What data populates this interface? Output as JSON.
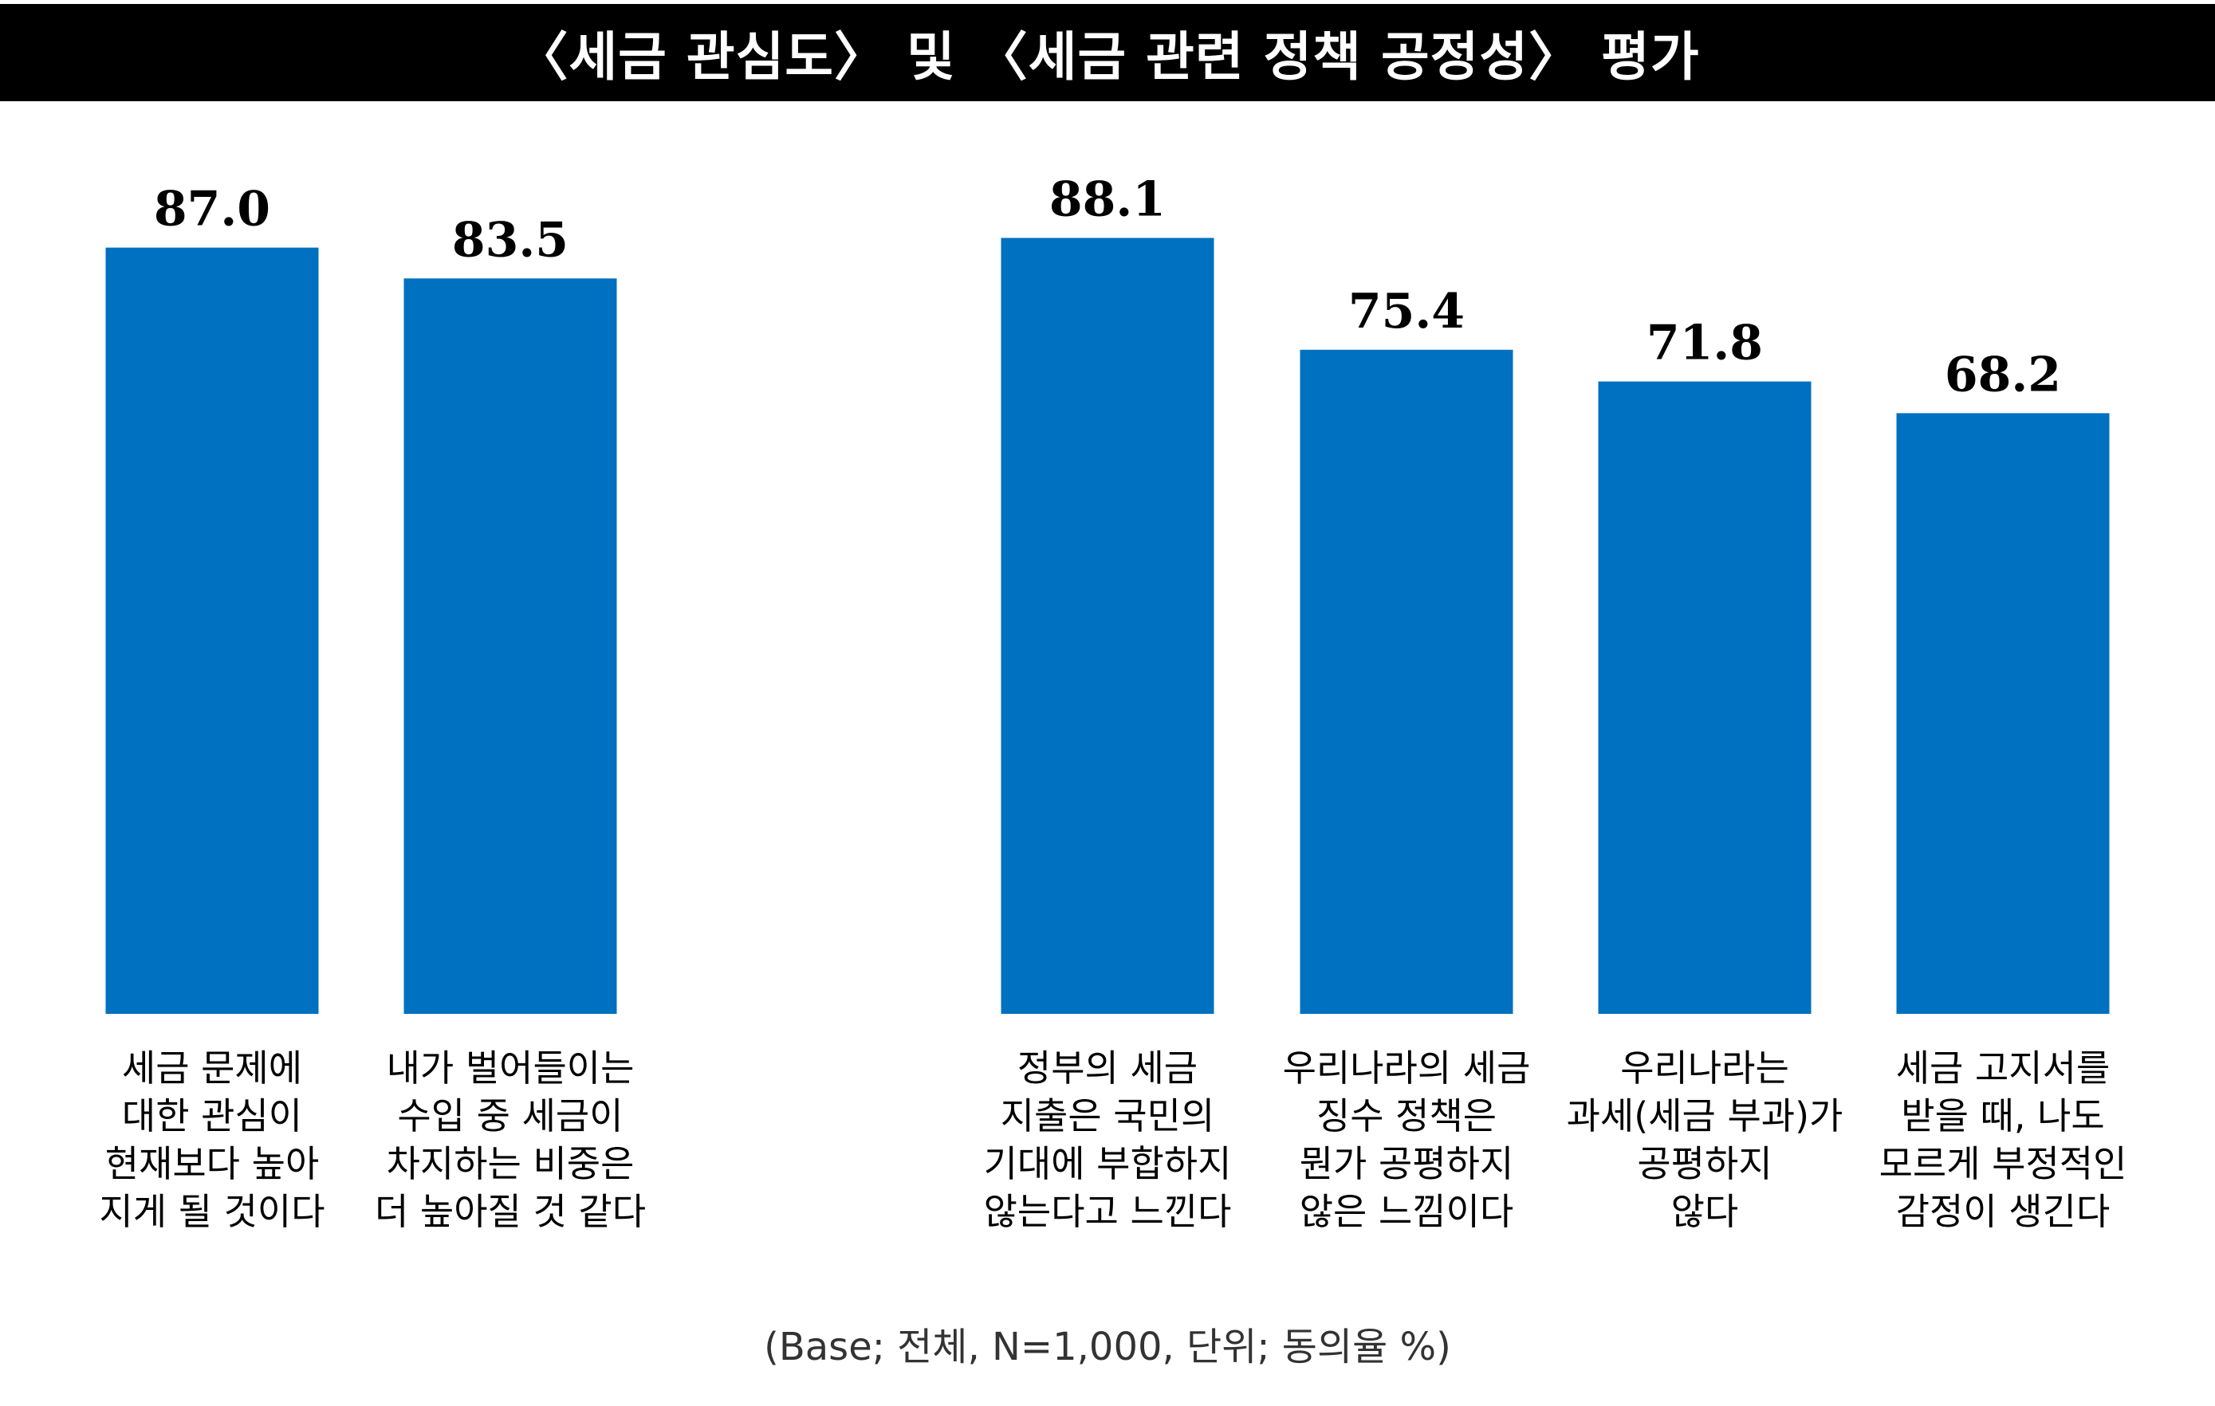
{
  "title": "〈세금 관심도〉 및 〈세금 관련 정책 공정성〉 평가",
  "footnote": "(Base; 전체, N=1,000, 단위; 동의율 %)",
  "colors": {
    "bar": "#0070C0",
    "title_bar": "#000000",
    "title_text": "#FFFFFF"
  },
  "chart_data": {
    "type": "bar",
    "ylim": [
      0,
      100
    ],
    "grid": false,
    "legend": "none",
    "groups": [
      {
        "categories": [
          [
            "세금 문제에",
            "대한 관심이",
            "현재보다 높아",
            "지게 될 것이다"
          ],
          [
            "내가 벌어들이는",
            "수입 중 세금이",
            "차지하는 비중은",
            "더 높아질 것 같다"
          ]
        ],
        "values": [
          87.0,
          83.5
        ],
        "labels": [
          "87.0",
          "83.5"
        ]
      },
      {
        "categories": [
          [
            "정부의 세금",
            "지출은 국민의",
            "기대에 부합하지",
            "않는다고 느낀다"
          ],
          [
            "우리나라의 세금",
            "징수 정책은",
            "뭔가 공평하지",
            "않은 느낌이다"
          ],
          [
            "우리나라는",
            "과세(세금 부과)가",
            "공평하지",
            "않다"
          ],
          [
            "세금 고지서를",
            "받을 때, 나도",
            "모르게 부정적인",
            "감정이 생긴다"
          ]
        ],
        "values": [
          88.1,
          75.4,
          71.8,
          68.2
        ],
        "labels": [
          "88.1",
          "75.4",
          "71.8",
          "68.2"
        ]
      }
    ]
  }
}
